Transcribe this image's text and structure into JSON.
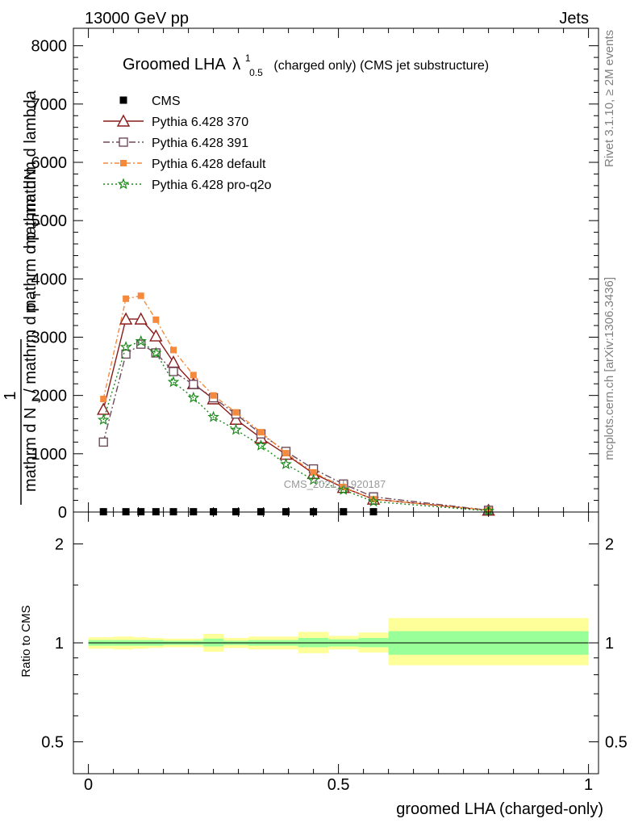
{
  "header": {
    "left": "13000 GeV pp",
    "right": "Jets"
  },
  "side_labels": {
    "rivet": "Rivet 3.1.10, ≥ 2M events",
    "mcplots": "mcplots.cern.ch [arXiv:1306.3436]"
  },
  "watermark": "CMS_2021_I1920187",
  "colors": {
    "cms": "#000000",
    "p370": "#8b1a1a",
    "p391": "#6e4a5a",
    "pdefault": "#f58a3c",
    "pq2o": "#1a8a1a",
    "band_inner": "#99ff99",
    "band_outer": "#ffff99"
  },
  "chart_data": [
    {
      "type": "line",
      "title_main": "Groomed LHA",
      "title_lambda": "λ",
      "title_sup": "1",
      "title_sub": "0.5",
      "title_rest": "(charged only) (CMS jet substructure)",
      "ylabel_top": "mathrm dN",
      "ylabel_mid": "mathrm d p",
      "ylabel_mid_sub": "T",
      "ylabel_mid2": "mathrm d lambda",
      "ylabel_one": "1",
      "ylabel_bottom": "mathrm d N",
      "ylabel_bottom_sub": "J",
      "ylabel_bottom2": "/ mathrm d p",
      "ylabel_bottom2_sub": "T",
      "xlim": [
        -0.03,
        1.02
      ],
      "ylim": [
        0,
        8300
      ],
      "yticks": [
        0,
        1000,
        2000,
        3000,
        4000,
        5000,
        6000,
        7000,
        8000
      ],
      "ytick_labels": [
        "0",
        "1000",
        "2000",
        "3000",
        "4000",
        "5000",
        "6000",
        "7000",
        "8000"
      ],
      "legend": [
        "CMS",
        "Pythia 6.428 370",
        "Pythia 6.428 391",
        "Pythia 6.428 default",
        "Pythia 6.428 pro-q2o"
      ],
      "series": [
        {
          "name": "CMS",
          "marker": "square-filled",
          "x": [
            0.03,
            0.075,
            0.105,
            0.135,
            0.17,
            0.21,
            0.25,
            0.295,
            0.345,
            0.395,
            0.45,
            0.51,
            0.57
          ],
          "y": [
            5,
            5,
            5,
            5,
            5,
            5,
            5,
            5,
            5,
            5,
            5,
            5,
            5
          ]
        },
        {
          "name": "Pythia 6.428 370",
          "marker": "triangle-open",
          "dash": "",
          "x": [
            0.03,
            0.075,
            0.105,
            0.135,
            0.17,
            0.21,
            0.25,
            0.295,
            0.345,
            0.395,
            0.45,
            0.51,
            0.57,
            0.8
          ],
          "y": [
            1760,
            3310,
            3310,
            3020,
            2570,
            2200,
            1940,
            1590,
            1270,
            990,
            660,
            420,
            220,
            30
          ]
        },
        {
          "name": "Pythia 6.428 391",
          "marker": "square-open",
          "dash": "8,3,2,3",
          "x": [
            0.03,
            0.075,
            0.105,
            0.135,
            0.17,
            0.21,
            0.25,
            0.295,
            0.345,
            0.395,
            0.45,
            0.51,
            0.57,
            0.8
          ],
          "y": [
            1200,
            2710,
            2880,
            2730,
            2410,
            2190,
            1960,
            1680,
            1340,
            1040,
            740,
            480,
            260,
            30
          ]
        },
        {
          "name": "Pythia 6.428 default",
          "marker": "square-filled-small",
          "dash": "6,3,2,3",
          "x": [
            0.03,
            0.075,
            0.105,
            0.135,
            0.17,
            0.21,
            0.25,
            0.295,
            0.345,
            0.395,
            0.45,
            0.51,
            0.57,
            0.8
          ],
          "y": [
            1940,
            3660,
            3710,
            3300,
            2780,
            2350,
            2000,
            1710,
            1370,
            1010,
            680,
            430,
            220,
            30
          ]
        },
        {
          "name": "Pythia 6.428 pro-q2o",
          "marker": "star",
          "dash": "2,3",
          "x": [
            0.03,
            0.075,
            0.105,
            0.135,
            0.17,
            0.21,
            0.25,
            0.295,
            0.345,
            0.395,
            0.45,
            0.51,
            0.57,
            0.8
          ],
          "y": [
            1580,
            2830,
            2930,
            2730,
            2230,
            1960,
            1630,
            1410,
            1140,
            820,
            550,
            380,
            180,
            20
          ]
        }
      ]
    },
    {
      "type": "area",
      "ylabel": "Ratio to CMS",
      "xlabel": "groomed LHA (charged-only)",
      "xlim": [
        -0.03,
        1.02
      ],
      "ylog": true,
      "ylim": [
        0.4,
        2.5
      ],
      "yticks": [
        0.5,
        1,
        2
      ],
      "ytick_labels": [
        "0.5",
        "1",
        "2"
      ],
      "xticks": [
        0,
        0.5,
        1
      ],
      "xtick_labels": [
        "0",
        "0.5",
        "1"
      ],
      "reference": 1,
      "bands": [
        {
          "x0": 0.0,
          "x1": 0.05,
          "inner": [
            0.98,
            1.02
          ],
          "outer": [
            0.96,
            1.04
          ]
        },
        {
          "x0": 0.05,
          "x1": 0.09,
          "inner": [
            0.98,
            1.02
          ],
          "outer": [
            0.955,
            1.045
          ]
        },
        {
          "x0": 0.09,
          "x1": 0.12,
          "inner": [
            0.98,
            1.02
          ],
          "outer": [
            0.96,
            1.04
          ]
        },
        {
          "x0": 0.12,
          "x1": 0.15,
          "inner": [
            0.98,
            1.02
          ],
          "outer": [
            0.965,
            1.035
          ]
        },
        {
          "x0": 0.15,
          "x1": 0.19,
          "inner": [
            0.985,
            1.015
          ],
          "outer": [
            0.97,
            1.03
          ]
        },
        {
          "x0": 0.19,
          "x1": 0.23,
          "inner": [
            0.985,
            1.015
          ],
          "outer": [
            0.97,
            1.03
          ]
        },
        {
          "x0": 0.23,
          "x1": 0.27,
          "inner": [
            0.975,
            1.03
          ],
          "outer": [
            0.94,
            1.065
          ]
        },
        {
          "x0": 0.27,
          "x1": 0.32,
          "inner": [
            0.985,
            1.015
          ],
          "outer": [
            0.965,
            1.035
          ]
        },
        {
          "x0": 0.32,
          "x1": 0.37,
          "inner": [
            0.98,
            1.02
          ],
          "outer": [
            0.955,
            1.045
          ]
        },
        {
          "x0": 0.37,
          "x1": 0.42,
          "inner": [
            0.98,
            1.02
          ],
          "outer": [
            0.955,
            1.045
          ]
        },
        {
          "x0": 0.42,
          "x1": 0.48,
          "inner": [
            0.97,
            1.035
          ],
          "outer": [
            0.93,
            1.08
          ]
        },
        {
          "x0": 0.48,
          "x1": 0.54,
          "inner": [
            0.975,
            1.025
          ],
          "outer": [
            0.955,
            1.05
          ]
        },
        {
          "x0": 0.54,
          "x1": 0.6,
          "inner": [
            0.97,
            1.035
          ],
          "outer": [
            0.935,
            1.075
          ]
        },
        {
          "x0": 0.6,
          "x1": 1.0,
          "inner": [
            0.92,
            1.085
          ],
          "outer": [
            0.855,
            1.19
          ]
        }
      ]
    }
  ]
}
